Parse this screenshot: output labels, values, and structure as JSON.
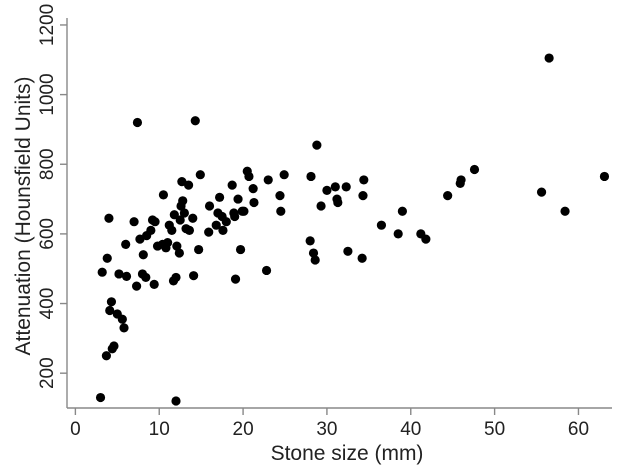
{
  "chart_data": {
    "type": "scatter",
    "title": "",
    "xlabel": "Stone size (mm)",
    "ylabel": "Attenuation (Hounsfield Units)",
    "xlim": [
      -1,
      64
    ],
    "ylim": [
      100,
      1220
    ],
    "x_ticks": [
      0,
      10,
      20,
      30,
      40,
      50,
      60
    ],
    "y_ticks": [
      200,
      400,
      600,
      800,
      1000,
      1200
    ],
    "grid": false,
    "legend": "none",
    "marker_color": "#000000",
    "points": [
      {
        "x": 3.0,
        "y": 130
      },
      {
        "x": 3.2,
        "y": 490
      },
      {
        "x": 3.8,
        "y": 530
      },
      {
        "x": 3.7,
        "y": 250
      },
      {
        "x": 4.0,
        "y": 645
      },
      {
        "x": 4.1,
        "y": 380
      },
      {
        "x": 4.3,
        "y": 405
      },
      {
        "x": 4.4,
        "y": 270
      },
      {
        "x": 4.6,
        "y": 278
      },
      {
        "x": 5.0,
        "y": 370
      },
      {
        "x": 5.2,
        "y": 485
      },
      {
        "x": 5.6,
        "y": 355
      },
      {
        "x": 5.8,
        "y": 330
      },
      {
        "x": 6.0,
        "y": 570
      },
      {
        "x": 6.1,
        "y": 478
      },
      {
        "x": 7.0,
        "y": 635
      },
      {
        "x": 7.3,
        "y": 450
      },
      {
        "x": 7.4,
        "y": 920
      },
      {
        "x": 7.7,
        "y": 585
      },
      {
        "x": 8.0,
        "y": 485
      },
      {
        "x": 8.1,
        "y": 540
      },
      {
        "x": 8.4,
        "y": 475
      },
      {
        "x": 8.5,
        "y": 595
      },
      {
        "x": 9.0,
        "y": 610
      },
      {
        "x": 9.2,
        "y": 640
      },
      {
        "x": 9.4,
        "y": 455
      },
      {
        "x": 9.5,
        "y": 635
      },
      {
        "x": 9.8,
        "y": 565
      },
      {
        "x": 10.4,
        "y": 570
      },
      {
        "x": 10.5,
        "y": 712
      },
      {
        "x": 10.8,
        "y": 560
      },
      {
        "x": 11.0,
        "y": 575
      },
      {
        "x": 11.2,
        "y": 625
      },
      {
        "x": 11.5,
        "y": 610
      },
      {
        "x": 11.7,
        "y": 465
      },
      {
        "x": 11.8,
        "y": 655
      },
      {
        "x": 12.0,
        "y": 120
      },
      {
        "x": 12.0,
        "y": 475
      },
      {
        "x": 12.1,
        "y": 565
      },
      {
        "x": 12.4,
        "y": 545
      },
      {
        "x": 12.5,
        "y": 640
      },
      {
        "x": 12.6,
        "y": 680
      },
      {
        "x": 12.7,
        "y": 750
      },
      {
        "x": 12.8,
        "y": 695
      },
      {
        "x": 13.0,
        "y": 660
      },
      {
        "x": 13.2,
        "y": 615
      },
      {
        "x": 13.5,
        "y": 740
      },
      {
        "x": 13.6,
        "y": 610
      },
      {
        "x": 14.0,
        "y": 645
      },
      {
        "x": 14.1,
        "y": 480
      },
      {
        "x": 14.3,
        "y": 925
      },
      {
        "x": 14.7,
        "y": 555
      },
      {
        "x": 14.9,
        "y": 770
      },
      {
        "x": 15.9,
        "y": 605
      },
      {
        "x": 16.0,
        "y": 680
      },
      {
        "x": 16.8,
        "y": 625
      },
      {
        "x": 17.0,
        "y": 660
      },
      {
        "x": 17.2,
        "y": 705
      },
      {
        "x": 17.5,
        "y": 650
      },
      {
        "x": 17.6,
        "y": 610
      },
      {
        "x": 18.0,
        "y": 635
      },
      {
        "x": 18.7,
        "y": 740
      },
      {
        "x": 18.9,
        "y": 660
      },
      {
        "x": 19.0,
        "y": 650
      },
      {
        "x": 19.1,
        "y": 470
      },
      {
        "x": 19.4,
        "y": 700
      },
      {
        "x": 19.7,
        "y": 555
      },
      {
        "x": 19.9,
        "y": 665
      },
      {
        "x": 20.1,
        "y": 665
      },
      {
        "x": 20.5,
        "y": 780
      },
      {
        "x": 20.7,
        "y": 765
      },
      {
        "x": 21.2,
        "y": 730
      },
      {
        "x": 21.3,
        "y": 690
      },
      {
        "x": 22.8,
        "y": 495
      },
      {
        "x": 23.0,
        "y": 755
      },
      {
        "x": 24.4,
        "y": 710
      },
      {
        "x": 24.5,
        "y": 665
      },
      {
        "x": 24.9,
        "y": 770
      },
      {
        "x": 28.0,
        "y": 580
      },
      {
        "x": 28.1,
        "y": 765
      },
      {
        "x": 28.4,
        "y": 545
      },
      {
        "x": 28.6,
        "y": 525
      },
      {
        "x": 28.8,
        "y": 855
      },
      {
        "x": 29.3,
        "y": 680
      },
      {
        "x": 30.0,
        "y": 725
      },
      {
        "x": 31.0,
        "y": 735
      },
      {
        "x": 31.2,
        "y": 700
      },
      {
        "x": 31.3,
        "y": 690
      },
      {
        "x": 32.3,
        "y": 735
      },
      {
        "x": 32.5,
        "y": 550
      },
      {
        "x": 34.2,
        "y": 530
      },
      {
        "x": 34.3,
        "y": 710
      },
      {
        "x": 34.4,
        "y": 755
      },
      {
        "x": 36.5,
        "y": 625
      },
      {
        "x": 38.5,
        "y": 600
      },
      {
        "x": 39.0,
        "y": 665
      },
      {
        "x": 41.2,
        "y": 600
      },
      {
        "x": 41.8,
        "y": 585
      },
      {
        "x": 44.4,
        "y": 710
      },
      {
        "x": 45.9,
        "y": 745
      },
      {
        "x": 46.0,
        "y": 755
      },
      {
        "x": 47.6,
        "y": 785
      },
      {
        "x": 55.6,
        "y": 720
      },
      {
        "x": 56.5,
        "y": 1105
      },
      {
        "x": 58.4,
        "y": 665
      },
      {
        "x": 63.1,
        "y": 765
      }
    ]
  }
}
